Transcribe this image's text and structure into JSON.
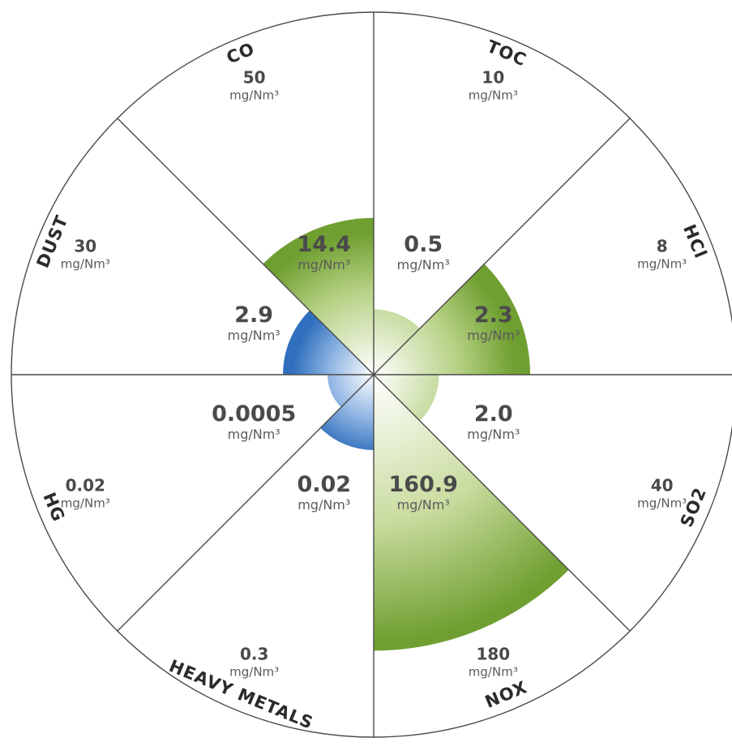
{
  "chart_data": {
    "type": "polar-area",
    "unit": "mg/Nm³",
    "colors": {
      "green": "#7aa83a",
      "blue": "#2f74c0",
      "grid": "#4a4a4a"
    },
    "categories": [
      {
        "name": "TOC",
        "limit": "10",
        "measured": "0.5",
        "measured_value": 0.5,
        "limit_value": 10,
        "color": "green"
      },
      {
        "name": "HCl",
        "limit": "8",
        "measured": "2.3",
        "measured_value": 2.3,
        "limit_value": 8,
        "color": "green"
      },
      {
        "name": "SO2",
        "limit": "40",
        "measured": "2.0",
        "measured_value": 2.0,
        "limit_value": 40,
        "color": "green"
      },
      {
        "name": "NOX",
        "limit": "180",
        "measured": "160.9",
        "measured_value": 160.9,
        "limit_value": 180,
        "color": "green"
      },
      {
        "name": "HEAVY METALS",
        "limit": "0.3",
        "measured": "0.02",
        "measured_value": 0.02,
        "limit_value": 0.3,
        "color": "blue"
      },
      {
        "name": "HG",
        "limit": "0.02",
        "measured": "0.0005",
        "measured_value": 0.0005,
        "limit_value": 0.02,
        "color": "blue"
      },
      {
        "name": "DUST",
        "limit": "30",
        "measured": "2.9",
        "measured_value": 2.9,
        "limit_value": 30,
        "color": "blue"
      },
      {
        "name": "CO",
        "limit": "50",
        "measured": "14.4",
        "measured_value": 14.4,
        "limit_value": 50,
        "color": "green"
      }
    ]
  }
}
